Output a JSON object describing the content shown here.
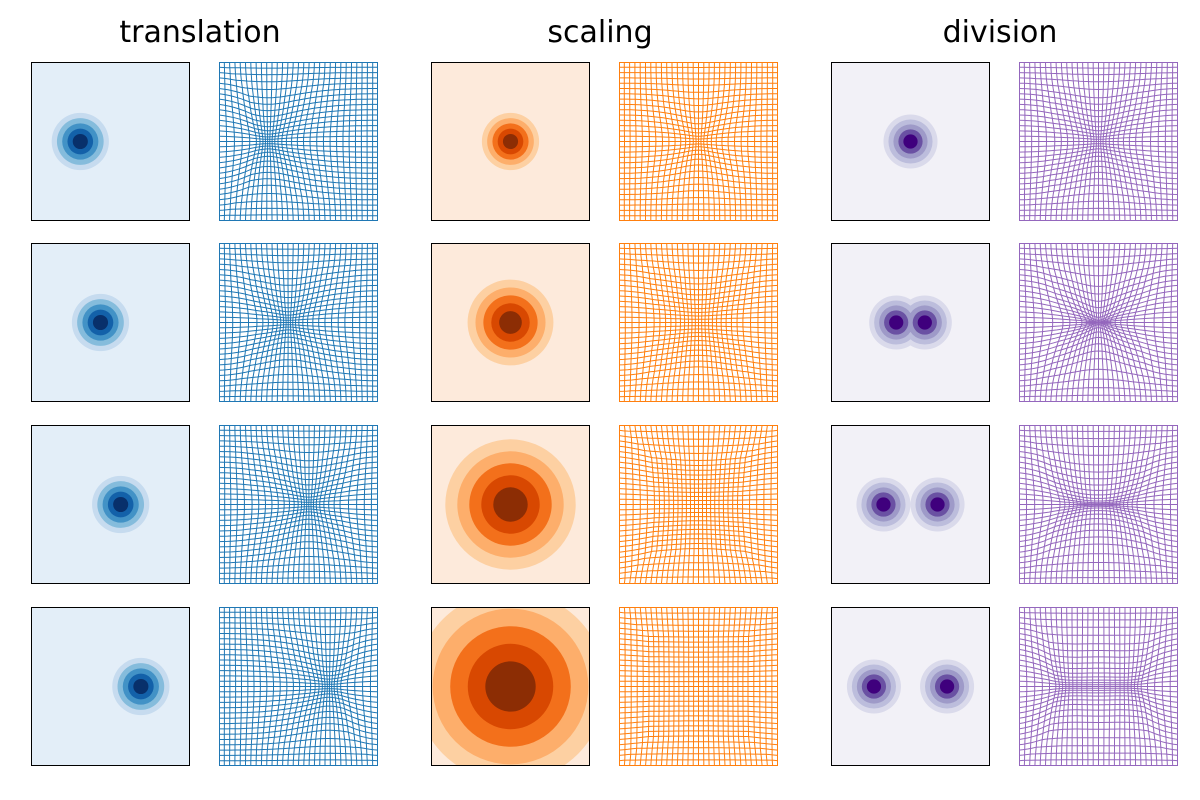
{
  "columns": [
    {
      "title": "translation"
    },
    {
      "title": "scaling"
    },
    {
      "title": "division"
    }
  ]
}
